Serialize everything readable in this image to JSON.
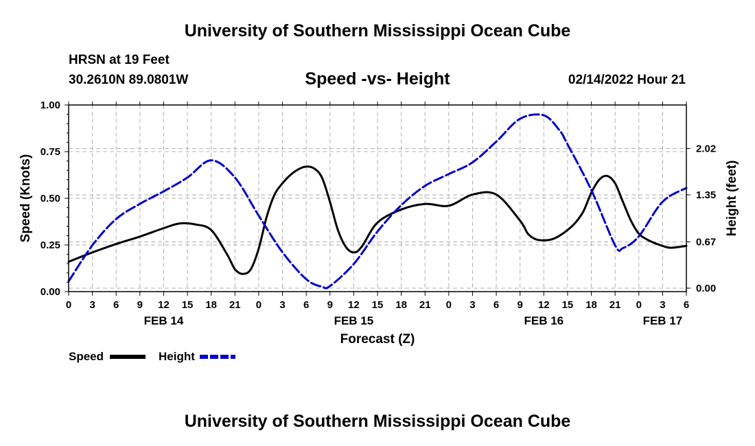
{
  "header": {
    "title": "University of Southern Mississippi Ocean Cube",
    "station": "HRSN at 19 Feet",
    "coordinates": "30.2610N  89.0801W",
    "subtitle": "Speed -vs- Height",
    "datetime": "02/14/2022 Hour 21"
  },
  "footer": {
    "title": "University of Southern Mississippi Ocean Cube"
  },
  "colors": {
    "speed": "#000000",
    "height": "#0000cc",
    "grid": "#b0b0b0"
  },
  "chart_data": {
    "type": "line",
    "xlabel": "Forecast (Z)",
    "ylabel": "Speed (Knots)",
    "y2label": "Height (feet)",
    "xlim": [
      0,
      78
    ],
    "ylim": [
      0,
      1
    ],
    "y2lim": [
      -0.05,
      2.65
    ],
    "x_ticks": [
      0,
      3,
      6,
      9,
      12,
      15,
      18,
      21,
      24,
      27,
      30,
      33,
      36,
      39,
      42,
      45,
      48,
      51,
      54,
      57,
      60,
      63,
      66,
      69,
      72,
      75,
      78
    ],
    "x_tick_labels": [
      "0",
      "3",
      "6",
      "9",
      "12",
      "15",
      "18",
      "21",
      "0",
      "3",
      "6",
      "9",
      "12",
      "15",
      "18",
      "21",
      "0",
      "3",
      "6",
      "9",
      "12",
      "15",
      "18",
      "21",
      "0",
      "3",
      "6"
    ],
    "y_ticks": [
      0,
      0.25,
      0.5,
      0.75,
      1
    ],
    "y_tick_labels": [
      "0.00",
      "0.25",
      "0.50",
      "0.75",
      "1.00"
    ],
    "y2_ticks": [
      0,
      0.67,
      1.35,
      2.02
    ],
    "y2_tick_labels": [
      "0.00",
      "0.67",
      "1.35",
      "2.02"
    ],
    "date_labels": [
      {
        "x": 12,
        "label": "FEB 14"
      },
      {
        "x": 36,
        "label": "FEB 15"
      },
      {
        "x": 60,
        "label": "FEB 16"
      },
      {
        "x": 75,
        "label": "FEB 17"
      }
    ],
    "grid": true,
    "series": [
      {
        "name": "Speed",
        "axis": "left",
        "x": [
          0,
          3,
          6,
          9,
          12,
          14,
          16,
          18,
          20,
          21,
          22,
          23,
          24,
          25,
          26,
          27,
          28,
          29,
          30,
          31,
          32,
          33,
          34,
          35,
          36,
          37,
          39,
          42,
          45,
          48,
          51,
          54,
          57,
          58,
          59,
          60,
          61,
          62,
          63,
          64,
          65,
          66,
          67,
          68,
          69,
          70,
          71,
          72,
          73,
          74,
          75,
          76,
          78
        ],
        "values": [
          0.16,
          0.21,
          0.255,
          0.295,
          0.34,
          0.365,
          0.36,
          0.33,
          0.2,
          0.12,
          0.095,
          0.12,
          0.23,
          0.4,
          0.52,
          0.58,
          0.625,
          0.655,
          0.67,
          0.66,
          0.61,
          0.48,
          0.33,
          0.24,
          0.21,
          0.24,
          0.37,
          0.44,
          0.47,
          0.46,
          0.52,
          0.52,
          0.38,
          0.31,
          0.28,
          0.275,
          0.28,
          0.3,
          0.33,
          0.37,
          0.43,
          0.53,
          0.6,
          0.62,
          0.58,
          0.48,
          0.38,
          0.31,
          0.28,
          0.26,
          0.245,
          0.235,
          0.245
        ]
      },
      {
        "name": "Height",
        "axis": "right",
        "x": [
          0,
          3,
          6,
          9,
          12,
          15,
          18,
          21,
          24,
          27,
          30,
          32,
          33,
          36,
          39,
          42,
          45,
          48,
          51,
          54,
          57,
          60,
          62,
          63,
          66,
          69,
          70,
          72,
          75,
          78
        ],
        "values": [
          0.1,
          0.62,
          1.0,
          1.22,
          1.4,
          1.6,
          1.85,
          1.6,
          1.05,
          0.52,
          0.13,
          0.02,
          0.03,
          0.35,
          0.82,
          1.2,
          1.48,
          1.65,
          1.82,
          2.12,
          2.45,
          2.5,
          2.28,
          2.08,
          1.42,
          0.62,
          0.58,
          0.75,
          1.25,
          1.45
        ]
      }
    ],
    "legend": [
      {
        "label": "Speed"
      },
      {
        "label": "Height"
      }
    ]
  }
}
